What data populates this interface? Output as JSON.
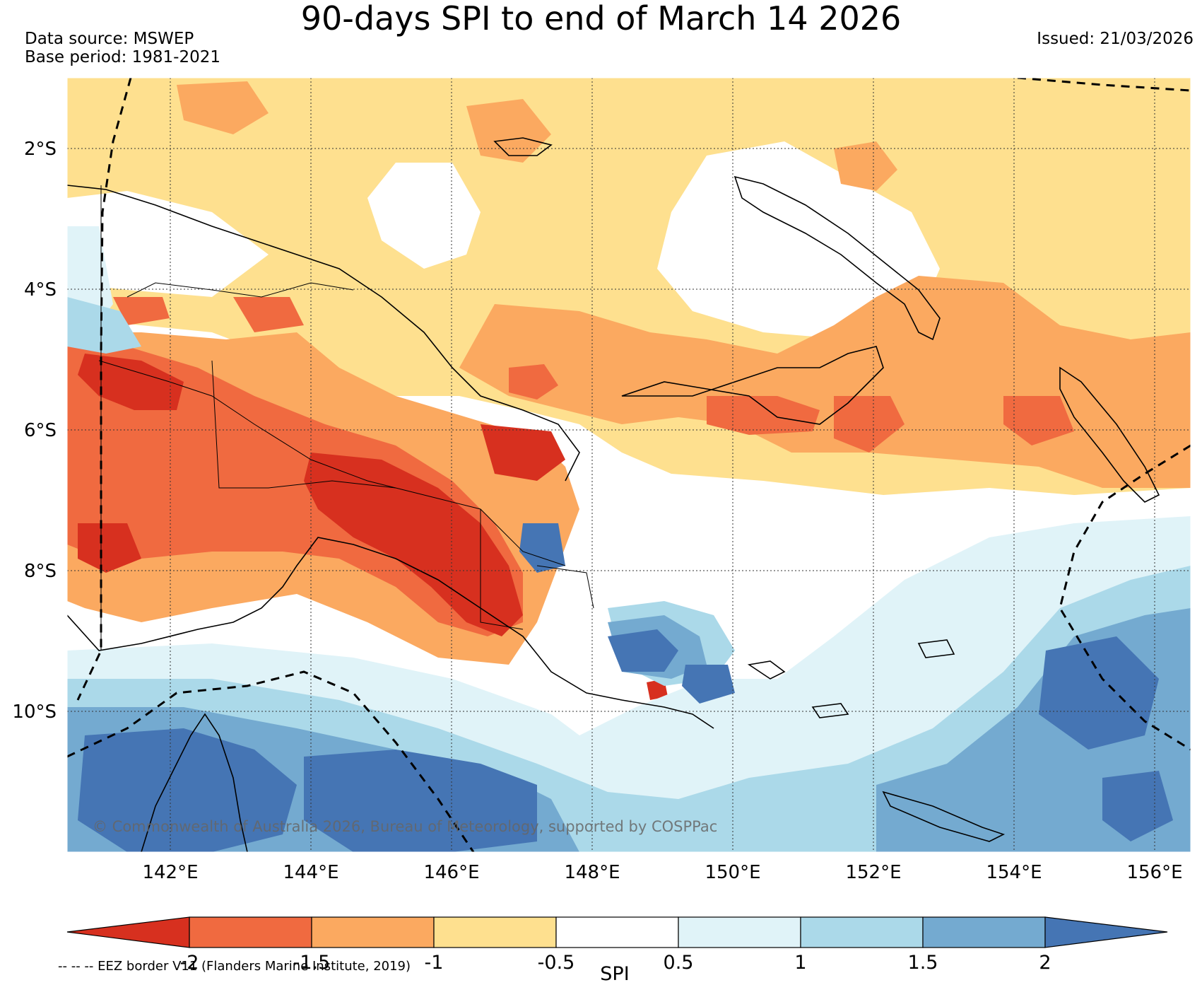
{
  "header": {
    "title": "90-days SPI to end of March 14 2026",
    "source_line": "Data source: MSWEP",
    "base_line": "Base period: 1981-2021",
    "issued": "Issued: 21/03/2026"
  },
  "map": {
    "copyright": "© Commonwealth of Australia 2026, Bureau of Meteorology, supported by COSPPac",
    "lat_labels": [
      "2°S",
      "4°S",
      "6°S",
      "8°S",
      "10°S"
    ],
    "lon_labels": [
      "142°E",
      "144°E",
      "146°E",
      "148°E",
      "150°E",
      "152°E",
      "154°E",
      "156°E"
    ],
    "lon_range": [
      140.5,
      156.5
    ],
    "lat_range": [
      -12.0,
      -1.0
    ]
  },
  "colorbar": {
    "label": "SPI",
    "ticks": [
      "-2",
      "-1.5",
      "-1",
      "-0.5",
      "0.5",
      "1",
      "1.5",
      "2"
    ],
    "colors": [
      "#d7301f",
      "#f06a40",
      "#fba960",
      "#fee08f",
      "#ffffff",
      "#e0f3f8",
      "#abd9e9",
      "#74aad0",
      "#4575b4"
    ]
  },
  "footnote": "-- -- -- EEZ border V11 (Flanders Marine Institute, 2019)",
  "chart_data": {
    "type": "heatmap",
    "title": "90-days SPI to end of March 14 2026",
    "variable": "SPI",
    "levels": [
      -2,
      -1.5,
      -1,
      -0.5,
      0.5,
      1,
      1.5,
      2
    ],
    "xlabel": "",
    "ylabel": ""
  }
}
